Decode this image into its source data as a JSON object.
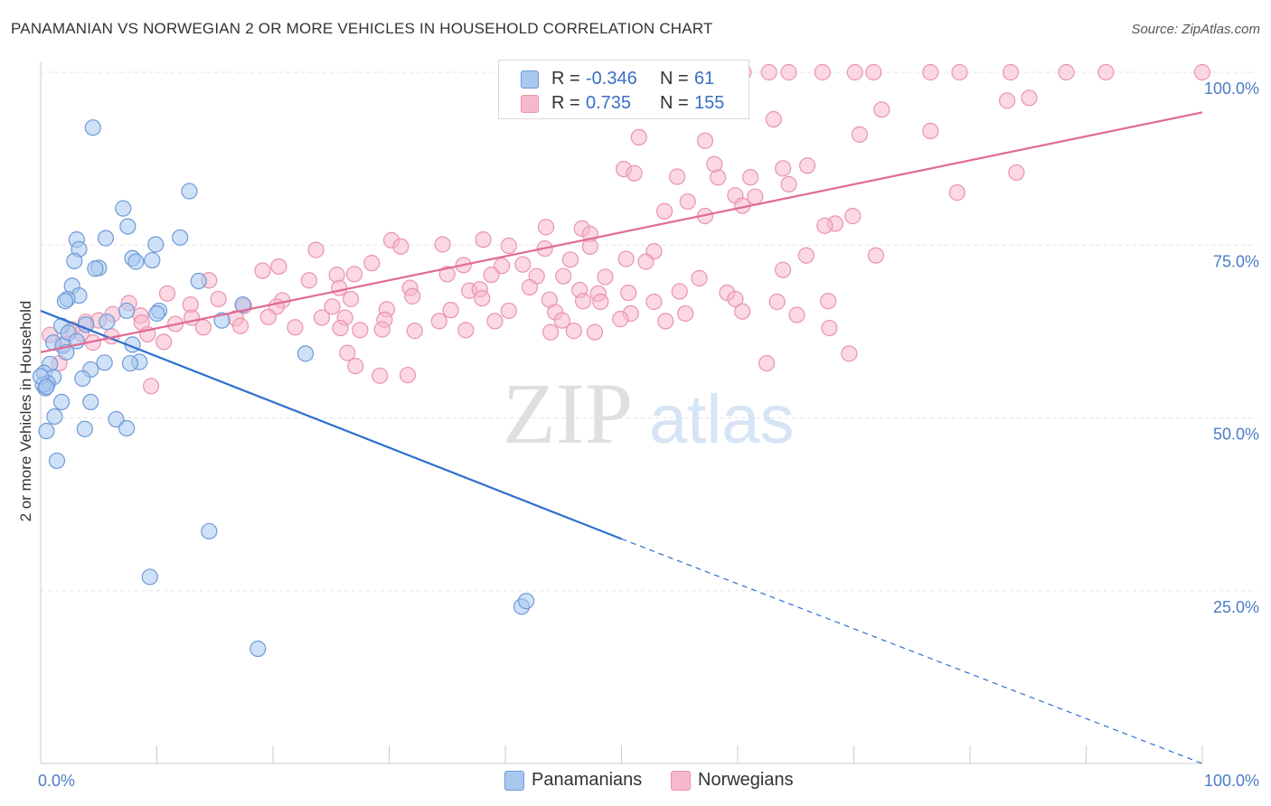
{
  "title": "PANAMANIAN VS NORWEGIAN 2 OR MORE VEHICLES IN HOUSEHOLD CORRELATION CHART",
  "source": "Source: ZipAtlas.com",
  "watermark": {
    "zip": "ZIP",
    "atlas": "atlas"
  },
  "colors": {
    "panamanian_fill": "#a8c8f0",
    "panamanian_stroke": "#6f9ad8",
    "panamanian_line": "#2e6fd0",
    "norwegian_fill": "#f7b8cb",
    "norwegian_stroke": "#e994ae",
    "norwegian_line": "#e06a94",
    "axis_label": "#4a7cc6",
    "grid": "#e3e3e3"
  },
  "legend": {
    "panamanian": {
      "r_label": "R =",
      "r_value": "-0.346",
      "n_label": "N =",
      "n_value": "61"
    },
    "norwegian": {
      "r_label": "R =",
      "r_value": "0.735",
      "n_label": "N =",
      "n_value": "155"
    }
  },
  "chart_data": {
    "type": "scatter",
    "title": "PANAMANIAN VS NORWEGIAN 2 OR MORE VEHICLES IN HOUSEHOLD CORRELATION CHART",
    "xlabel": "",
    "ylabel": "2 or more Vehicles in Household",
    "xlim": [
      0,
      100
    ],
    "ylim": [
      0,
      100
    ],
    "x_tick_labels": [
      "0.0%",
      "100.0%"
    ],
    "y_ticks": [
      25,
      50,
      75,
      100
    ],
    "y_tick_labels": [
      "25.0%",
      "50.0%",
      "75.0%",
      "100.0%"
    ],
    "grid": true,
    "legend_position": "top-center",
    "series": [
      {
        "name": "Panamanians",
        "r": -0.346,
        "n": 61,
        "trend": {
          "x0": 0,
          "y0": 65.5,
          "x1": 50,
          "y1": 32.5,
          "dashed_to_x": 100,
          "dashed_to_y": 0
        },
        "points": [
          [
            4.5,
            92.0
          ],
          [
            12.8,
            82.8
          ],
          [
            7.1,
            80.3
          ],
          [
            7.5,
            77.7
          ],
          [
            12.0,
            76.1
          ],
          [
            3.1,
            75.8
          ],
          [
            5.6,
            76.0
          ],
          [
            9.9,
            75.1
          ],
          [
            3.3,
            74.4
          ],
          [
            7.9,
            73.1
          ],
          [
            9.6,
            72.8
          ],
          [
            5.0,
            71.7
          ],
          [
            2.9,
            72.7
          ],
          [
            8.2,
            72.6
          ],
          [
            4.7,
            71.6
          ],
          [
            13.6,
            69.8
          ],
          [
            2.7,
            69.1
          ],
          [
            3.3,
            67.7
          ],
          [
            2.3,
            67.2
          ],
          [
            2.1,
            66.9
          ],
          [
            7.4,
            65.5
          ],
          [
            10.2,
            65.5
          ],
          [
            10.0,
            65.1
          ],
          [
            17.4,
            66.4
          ],
          [
            3.9,
            63.5
          ],
          [
            1.8,
            63.3
          ],
          [
            5.7,
            63.9
          ],
          [
            15.6,
            64.1
          ],
          [
            2.4,
            62.3
          ],
          [
            3.1,
            61.1
          ],
          [
            1.1,
            60.9
          ],
          [
            7.9,
            60.6
          ],
          [
            1.9,
            60.4
          ],
          [
            2.2,
            59.5
          ],
          [
            22.8,
            59.3
          ],
          [
            5.5,
            58.0
          ],
          [
            0.8,
            57.8
          ],
          [
            8.5,
            58.1
          ],
          [
            7.7,
            57.9
          ],
          [
            4.3,
            57.0
          ],
          [
            0.3,
            56.5
          ],
          [
            1.1,
            55.9
          ],
          [
            3.6,
            55.7
          ],
          [
            0.6,
            55.0
          ],
          [
            0.4,
            54.3
          ],
          [
            0.2,
            54.8
          ],
          [
            1.8,
            52.3
          ],
          [
            4.3,
            52.3
          ],
          [
            1.2,
            50.2
          ],
          [
            6.5,
            49.8
          ],
          [
            3.8,
            48.4
          ],
          [
            7.4,
            48.5
          ],
          [
            0.5,
            48.1
          ],
          [
            1.4,
            43.8
          ],
          [
            14.5,
            33.6
          ],
          [
            9.4,
            27.0
          ],
          [
            41.4,
            22.7
          ],
          [
            41.8,
            23.5
          ],
          [
            18.7,
            16.6
          ],
          [
            0.0,
            56.0
          ],
          [
            0.5,
            54.5
          ]
        ]
      },
      {
        "name": "Norwegians",
        "r": 0.735,
        "n": 155,
        "trend": {
          "x0": 0,
          "y0": 59.5,
          "x1": 100,
          "y1": 94.2
        },
        "points": [
          [
            60.5,
            100.0
          ],
          [
            62.7,
            100.0
          ],
          [
            64.4,
            100.0
          ],
          [
            67.3,
            100.0
          ],
          [
            70.1,
            100.0
          ],
          [
            71.7,
            100.0
          ],
          [
            76.6,
            100.0
          ],
          [
            79.1,
            100.0
          ],
          [
            83.5,
            100.0
          ],
          [
            88.3,
            100.0
          ],
          [
            91.7,
            100.0
          ],
          [
            100.0,
            100.0
          ],
          [
            83.2,
            95.9
          ],
          [
            85.1,
            96.3
          ],
          [
            72.4,
            94.6
          ],
          [
            63.1,
            93.2
          ],
          [
            76.6,
            91.5
          ],
          [
            70.5,
            91.0
          ],
          [
            51.5,
            90.6
          ],
          [
            57.2,
            90.1
          ],
          [
            50.2,
            86.0
          ],
          [
            51.1,
            85.4
          ],
          [
            54.8,
            84.9
          ],
          [
            58.3,
            84.8
          ],
          [
            61.1,
            84.8
          ],
          [
            63.9,
            86.1
          ],
          [
            66.0,
            86.5
          ],
          [
            84.0,
            85.5
          ],
          [
            58.0,
            86.7
          ],
          [
            64.4,
            83.8
          ],
          [
            78.9,
            82.6
          ],
          [
            59.8,
            82.2
          ],
          [
            61.5,
            82.0
          ],
          [
            55.7,
            81.3
          ],
          [
            60.4,
            80.7
          ],
          [
            53.7,
            79.9
          ],
          [
            57.2,
            79.2
          ],
          [
            69.9,
            79.2
          ],
          [
            68.4,
            78.1
          ],
          [
            67.5,
            77.8
          ],
          [
            43.5,
            77.6
          ],
          [
            46.6,
            77.4
          ],
          [
            47.3,
            76.6
          ],
          [
            30.2,
            75.7
          ],
          [
            38.1,
            75.8
          ],
          [
            34.6,
            75.1
          ],
          [
            40.3,
            74.9
          ],
          [
            43.4,
            74.5
          ],
          [
            47.3,
            74.8
          ],
          [
            23.7,
            74.3
          ],
          [
            31.0,
            74.8
          ],
          [
            52.8,
            74.1
          ],
          [
            65.9,
            73.5
          ],
          [
            71.9,
            73.5
          ],
          [
            45.6,
            72.9
          ],
          [
            50.4,
            73.0
          ],
          [
            52.1,
            72.6
          ],
          [
            28.5,
            72.4
          ],
          [
            41.5,
            72.2
          ],
          [
            20.5,
            71.9
          ],
          [
            36.4,
            72.1
          ],
          [
            39.7,
            72.0
          ],
          [
            63.9,
            71.4
          ],
          [
            19.1,
            71.3
          ],
          [
            25.5,
            70.7
          ],
          [
            27.0,
            70.8
          ],
          [
            35.0,
            70.8
          ],
          [
            38.8,
            70.7
          ],
          [
            42.7,
            70.5
          ],
          [
            45.0,
            70.5
          ],
          [
            48.6,
            70.4
          ],
          [
            56.7,
            70.2
          ],
          [
            14.5,
            69.9
          ],
          [
            23.1,
            69.9
          ],
          [
            25.7,
            68.8
          ],
          [
            31.8,
            68.8
          ],
          [
            36.9,
            68.4
          ],
          [
            37.8,
            68.6
          ],
          [
            42.1,
            68.9
          ],
          [
            46.4,
            68.5
          ],
          [
            48.0,
            68.0
          ],
          [
            50.6,
            68.1
          ],
          [
            55.0,
            68.3
          ],
          [
            59.1,
            68.1
          ],
          [
            10.9,
            68.0
          ],
          [
            15.3,
            67.2
          ],
          [
            20.8,
            67.0
          ],
          [
            26.7,
            67.2
          ],
          [
            32.0,
            67.6
          ],
          [
            38.0,
            67.3
          ],
          [
            43.8,
            67.1
          ],
          [
            46.7,
            66.9
          ],
          [
            48.2,
            66.8
          ],
          [
            52.8,
            66.8
          ],
          [
            59.8,
            67.2
          ],
          [
            63.4,
            66.8
          ],
          [
            67.8,
            66.9
          ],
          [
            7.6,
            66.6
          ],
          [
            12.9,
            66.4
          ],
          [
            17.5,
            66.2
          ],
          [
            20.3,
            66.1
          ],
          [
            25.1,
            66.1
          ],
          [
            29.8,
            65.7
          ],
          [
            35.3,
            65.6
          ],
          [
            40.3,
            65.5
          ],
          [
            44.3,
            65.3
          ],
          [
            50.8,
            65.1
          ],
          [
            55.5,
            65.1
          ],
          [
            60.4,
            65.4
          ],
          [
            65.1,
            64.9
          ],
          [
            6.2,
            65.0
          ],
          [
            8.6,
            64.8
          ],
          [
            13.0,
            64.5
          ],
          [
            16.8,
            64.4
          ],
          [
            19.6,
            64.6
          ],
          [
            24.2,
            64.5
          ],
          [
            26.2,
            64.5
          ],
          [
            29.6,
            64.2
          ],
          [
            34.3,
            64.0
          ],
          [
            39.1,
            64.0
          ],
          [
            44.9,
            64.1
          ],
          [
            49.9,
            64.3
          ],
          [
            53.8,
            64.0
          ],
          [
            3.9,
            63.9
          ],
          [
            5.0,
            64.1
          ],
          [
            8.7,
            63.8
          ],
          [
            11.6,
            63.6
          ],
          [
            14.0,
            63.1
          ],
          [
            17.2,
            63.3
          ],
          [
            21.9,
            63.1
          ],
          [
            25.8,
            63.0
          ],
          [
            27.5,
            62.7
          ],
          [
            29.4,
            62.8
          ],
          [
            32.2,
            62.6
          ],
          [
            36.6,
            62.7
          ],
          [
            43.9,
            62.4
          ],
          [
            45.9,
            62.6
          ],
          [
            47.7,
            62.4
          ],
          [
            2.7,
            62.8
          ],
          [
            3.5,
            62.2
          ],
          [
            6.1,
            61.8
          ],
          [
            9.2,
            62.1
          ],
          [
            0.8,
            62.0
          ],
          [
            10.6,
            61.0
          ],
          [
            4.5,
            60.9
          ],
          [
            2.0,
            60.7
          ],
          [
            67.9,
            63.0
          ],
          [
            69.6,
            59.3
          ],
          [
            26.4,
            59.4
          ],
          [
            1.6,
            57.9
          ],
          [
            27.1,
            57.5
          ],
          [
            29.2,
            56.1
          ],
          [
            31.6,
            56.2
          ],
          [
            62.5,
            57.9
          ],
          [
            9.5,
            54.6
          ]
        ]
      }
    ]
  }
}
